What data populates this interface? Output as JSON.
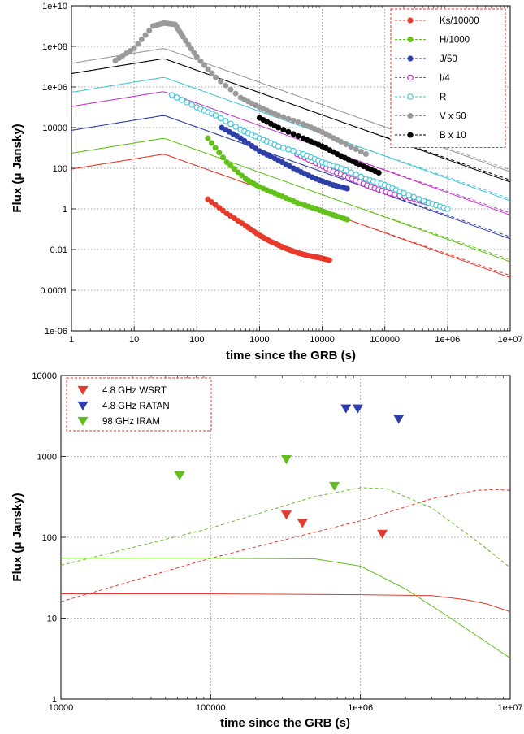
{
  "chart_data": [
    {
      "type": "scatter",
      "title": "",
      "xlabel": "time since the GRB (s)",
      "ylabel": "Flux (μ Jansky)",
      "xscale": "log",
      "yscale": "log",
      "xlim": [
        1,
        10000000
      ],
      "ylim": [
        1e-06,
        10000000000
      ],
      "xticks": [
        "1",
        "10",
        "100",
        "1000",
        "10000",
        "100000",
        "1e+06",
        "1e+07"
      ],
      "yticks": [
        "1e-06",
        "0.0001",
        "0.01",
        "1",
        "100",
        "10000",
        "1e+06",
        "1e+08",
        "1e+10"
      ],
      "grid": true,
      "legend_position": "top-right",
      "series": [
        {
          "name": "Ks/10000",
          "color": "#e8392b",
          "marker": "filled-circle",
          "x": [
            150,
            300,
            600,
            1000,
            1500,
            2500,
            4000,
            6000,
            9000,
            13000
          ],
          "y": [
            3,
            0.6,
            0.15,
            0.05,
            0.025,
            0.012,
            0.007,
            0.005,
            0.004,
            0.003
          ],
          "model_peak": 500
        },
        {
          "name": "H/1000",
          "color": "#62c11a",
          "marker": "filled-circle",
          "x": [
            150,
            300,
            600,
            1000,
            2000,
            4000,
            8000,
            15000,
            25000
          ],
          "y": [
            3000,
            200,
            30,
            12,
            5,
            2,
            1,
            0.5,
            0.3
          ],
          "model_peak": 3000
        },
        {
          "name": "J/50",
          "color": "#2e3ea8",
          "marker": "filled-circle",
          "x": [
            250,
            500,
            1000,
            2000,
            4000,
            8000,
            15000,
            25000
          ],
          "y": [
            10000,
            3000,
            700,
            250,
            80,
            30,
            15,
            10
          ],
          "model_peak": 40000
        },
        {
          "name": "I/4",
          "color": "#c43ac4",
          "marker": "open-circle",
          "x": [
            4000,
            8000,
            15000,
            30000,
            60000,
            120000,
            300000,
            500000
          ],
          "y": [
            500,
            180,
            70,
            30,
            12,
            6,
            3,
            2
          ],
          "model_peak": 600000
        },
        {
          "name": "R",
          "color": "#49c6d6",
          "marker": "open-circle",
          "x": [
            40,
            100,
            200,
            500,
            1000,
            2000,
            5000,
            10000,
            20000,
            50000,
            100000,
            200000,
            500000,
            1000000
          ],
          "y": [
            400000,
            100000,
            40000,
            8000,
            3000,
            1200,
            500,
            200,
            100,
            30,
            15,
            6,
            2,
            1
          ],
          "model_peak": 3000000
        },
        {
          "name": "V x 50",
          "color": "#9a9a9a",
          "marker": "filled-circle",
          "x": [
            5,
            10,
            20,
            30,
            45,
            60,
            100,
            200,
            500,
            1000,
            2000,
            5000,
            10000,
            20000,
            50000
          ],
          "y": [
            20000000,
            80000000,
            1000000000,
            1400000000,
            1200000000,
            300000000,
            30000000,
            3000000,
            300000,
            100000,
            40000,
            15000,
            6000,
            2000,
            500
          ],
          "model_peak": 80000000
        },
        {
          "name": "B x 10",
          "color": "#000000",
          "marker": "filled-circle",
          "x": [
            1000,
            2000,
            5000,
            10000,
            20000,
            40000,
            80000
          ],
          "y": [
            30000,
            10000,
            3000,
            1200,
            400,
            150,
            60
          ],
          "model_peak": 25000000
        }
      ]
    },
    {
      "type": "scatter",
      "title": "",
      "xlabel": "time since the GRB (s)",
      "ylabel": "Flux (μ Jansky)",
      "xscale": "log",
      "yscale": "log",
      "xlim": [
        10000,
        10000000
      ],
      "ylim": [
        1,
        10000
      ],
      "xticks": [
        "10000",
        "100000",
        "1e+06",
        "1e+07"
      ],
      "yticks": [
        "1",
        "10",
        "100",
        "1000",
        "10000"
      ],
      "grid": true,
      "legend_position": "top-left",
      "series": [
        {
          "name": "4.8 GHz WSRT",
          "color": "#e23b2e",
          "marker": "down-triangle",
          "x": [
            320000,
            410000,
            1400000
          ],
          "y": [
            190,
            150,
            110
          ]
        },
        {
          "name": "4.8 GHz RATAN",
          "color": "#2f3ea6",
          "marker": "down-triangle",
          "x": [
            800000,
            960000,
            1800000
          ],
          "y": [
            3900,
            3900,
            2900
          ]
        },
        {
          "name": "98 GHz IRAM",
          "color": "#62bd1e",
          "marker": "down-triangle",
          "x": [
            62000,
            320000,
            670000
          ],
          "y": [
            580,
            920,
            430
          ]
        }
      ],
      "model_curves": [
        {
          "color": "#e23b2e",
          "style": "solid",
          "x": [
            10000,
            100000,
            1000000,
            3000000,
            5000000,
            7000000,
            10000000
          ],
          "y": [
            20,
            20,
            19.5,
            19,
            17,
            15,
            12
          ]
        },
        {
          "color": "#e23b2e",
          "style": "dashed",
          "x": [
            10000,
            100000,
            1000000,
            3000000,
            6000000,
            8000000,
            10000000
          ],
          "y": [
            16,
            55,
            160,
            300,
            380,
            390,
            380
          ]
        },
        {
          "color": "#62bd1e",
          "style": "solid",
          "x": [
            10000,
            100000,
            500000,
            1000000,
            2000000,
            4000000,
            7000000,
            10000000
          ],
          "y": [
            55,
            55,
            54,
            44,
            23,
            10,
            5,
            3.2
          ]
        },
        {
          "color": "#62bd1e",
          "style": "dashed",
          "x": [
            10000,
            100000,
            500000,
            1000000,
            1500000,
            3000000,
            6000000,
            10000000
          ],
          "y": [
            45,
            130,
            320,
            410,
            400,
            230,
            90,
            42
          ]
        }
      ]
    }
  ]
}
